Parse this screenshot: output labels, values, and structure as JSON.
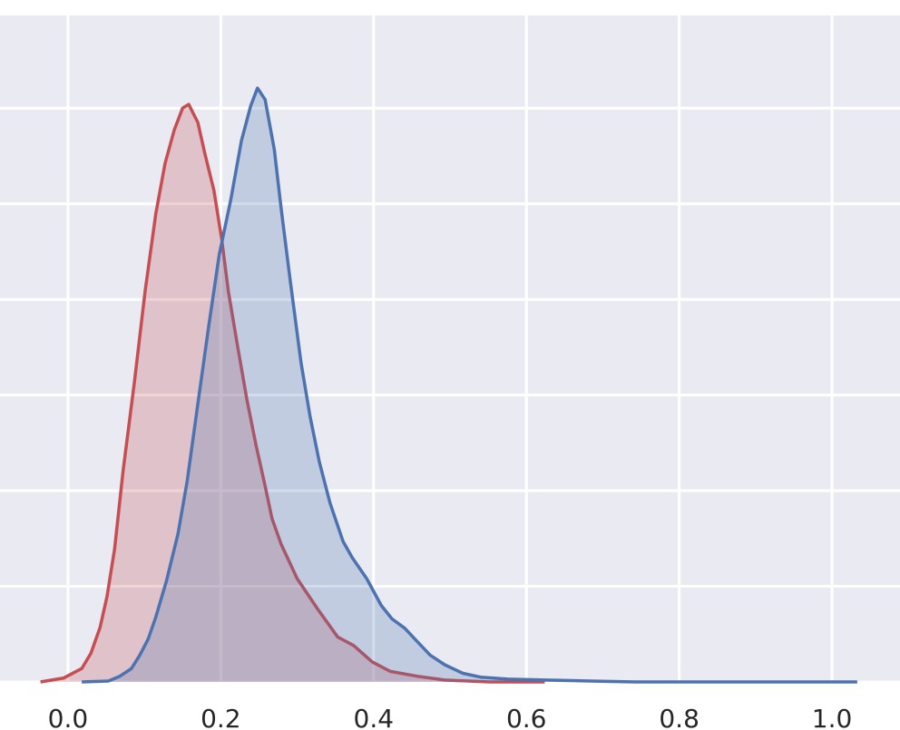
{
  "chart_data": {
    "type": "kde",
    "xlim": [
      -0.089,
      1.089
    ],
    "ylim": [
      0,
      6.97
    ],
    "xticks": [
      {
        "value": 0,
        "label": "0.0"
      },
      0.2,
      0.4,
      0.6,
      0.8,
      {
        "value": 1,
        "label": "1.0"
      }
    ],
    "yticks": [
      0,
      1,
      2,
      3,
      4,
      5,
      6
    ],
    "grid": true,
    "series": [
      {
        "color": "#c44e52",
        "x": [
          -0.036,
          -0.006,
          0.018,
          0.03,
          0.042,
          0.051,
          0.061,
          0.072,
          0.087,
          0.101,
          0.115,
          0.127,
          0.139,
          0.15,
          0.158,
          0.17,
          0.179,
          0.191,
          0.201,
          0.21,
          0.222,
          0.234,
          0.246,
          0.258,
          0.267,
          0.279,
          0.3,
          0.327,
          0.353,
          0.374,
          0.398,
          0.422,
          0.457,
          0.493,
          0.552,
          0.624
        ],
        "values": [
          0,
          0.04,
          0.14,
          0.3,
          0.57,
          0.89,
          1.39,
          2.2,
          3.14,
          4.09,
          4.9,
          5.42,
          5.77,
          6.0,
          6.04,
          5.85,
          5.53,
          5.14,
          4.64,
          4.08,
          3.51,
          2.96,
          2.48,
          2.05,
          1.71,
          1.44,
          1.08,
          0.76,
          0.47,
          0.38,
          0.21,
          0.11,
          0.06,
          0.02,
          0,
          0
        ]
      },
      {
        "color": "#4c72b0",
        "x": [
          0.018,
          0.053,
          0.068,
          0.083,
          0.094,
          0.105,
          0.115,
          0.129,
          0.144,
          0.156,
          0.17,
          0.184,
          0.198,
          0.213,
          0.227,
          0.239,
          0.248,
          0.258,
          0.27,
          0.279,
          0.291,
          0.305,
          0.317,
          0.329,
          0.343,
          0.36,
          0.372,
          0.391,
          0.41,
          0.424,
          0.441,
          0.455,
          0.474,
          0.493,
          0.517,
          0.54,
          0.576,
          0.624,
          0.683,
          0.742,
          0.861,
          1.033
        ],
        "values": [
          0,
          0.01,
          0.06,
          0.14,
          0.28,
          0.45,
          0.68,
          1.06,
          1.55,
          2.1,
          2.91,
          3.71,
          4.47,
          5.04,
          5.66,
          6.02,
          6.21,
          6.09,
          5.57,
          4.95,
          4.19,
          3.34,
          2.77,
          2.3,
          1.87,
          1.47,
          1.3,
          1.08,
          0.8,
          0.66,
          0.56,
          0.44,
          0.28,
          0.18,
          0.09,
          0.05,
          0.03,
          0.02,
          0.01,
          0,
          0,
          0
        ]
      }
    ]
  }
}
